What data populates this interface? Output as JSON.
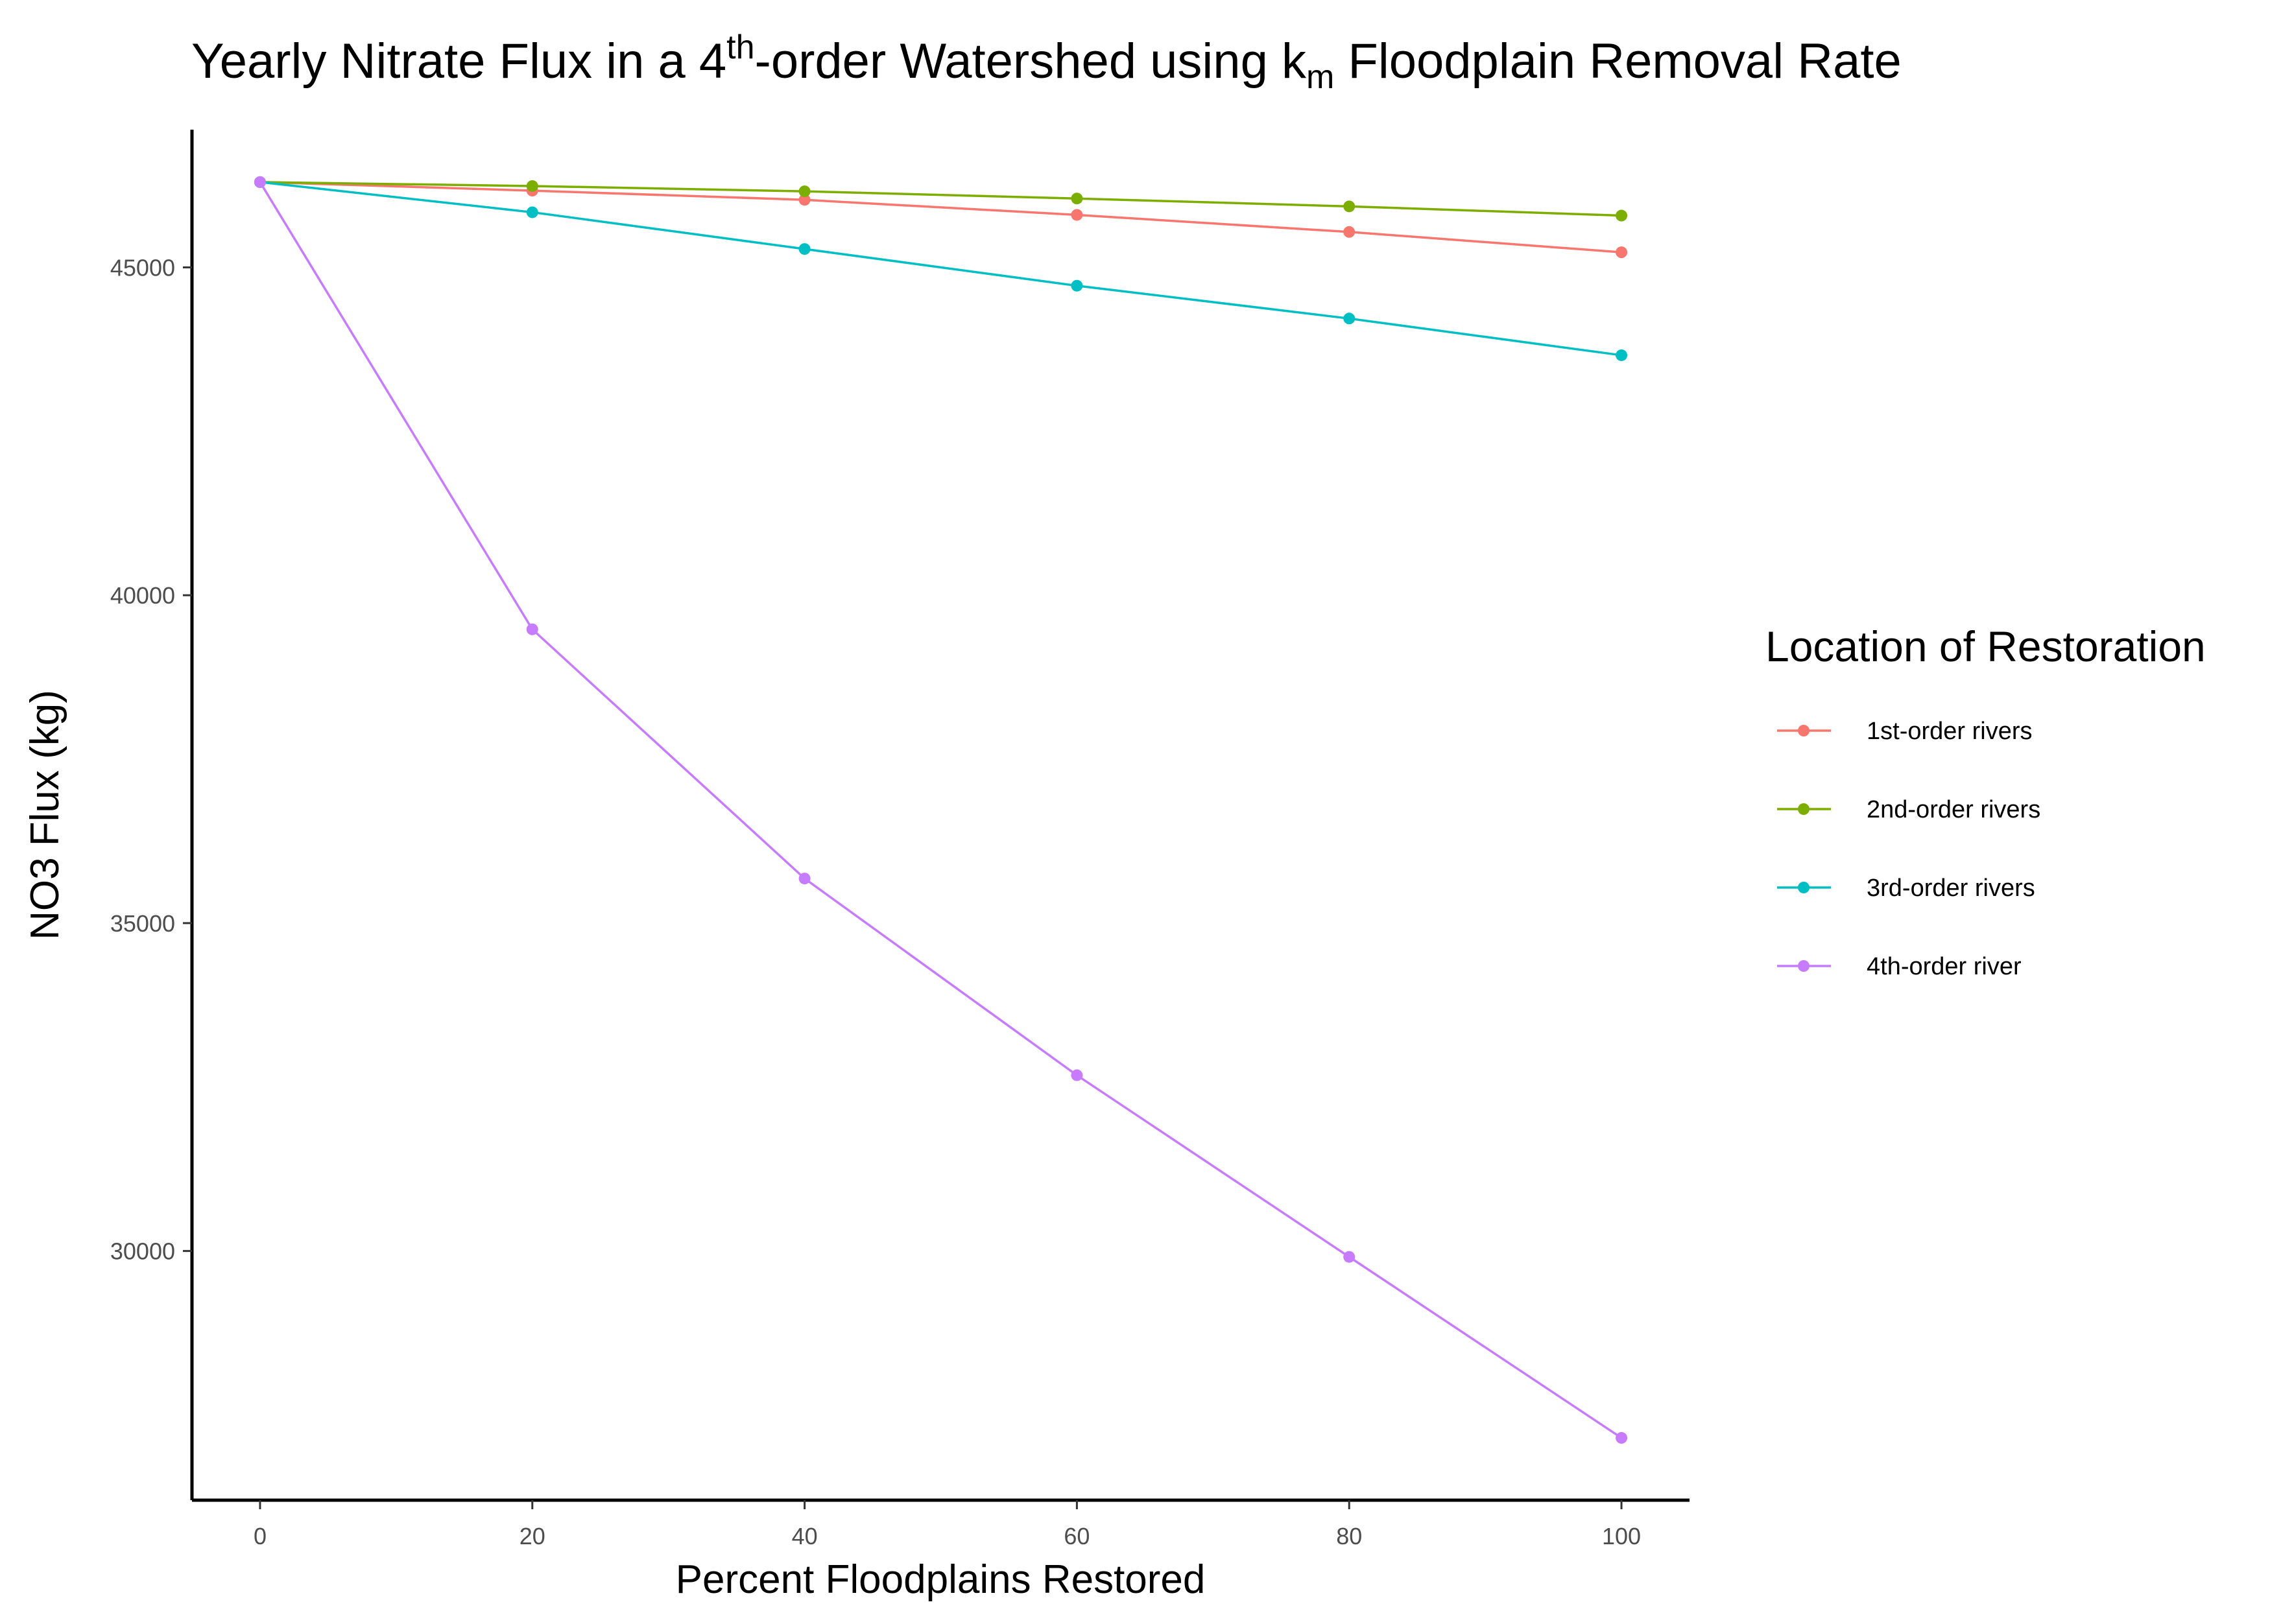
{
  "chart_data": {
    "type": "line",
    "title": {
      "pre": "Yearly Nitrate Flux in a 4",
      "sup": "th",
      "mid": "-order Watershed using k",
      "sub": "m",
      "post": " Floodplain Removal Rate"
    },
    "xlabel": "Percent Floodplains Restored",
    "ylabel": "NO3 Flux (kg)",
    "x": [
      0,
      20,
      40,
      60,
      80,
      100
    ],
    "xlim": [
      -5,
      105
    ],
    "ylim": [
      26200,
      47100
    ],
    "xticks": [
      "0",
      "20",
      "40",
      "60",
      "80",
      "100"
    ],
    "yticks": [
      "30000",
      "35000",
      "40000",
      "45000"
    ],
    "grid": false,
    "legend": {
      "title": "Location of Restoration",
      "placement": "right"
    },
    "series": [
      {
        "name": "1st-order rivers",
        "color": "#F8766D",
        "values": [
          46300,
          46170,
          46030,
          45800,
          45540,
          45230
        ]
      },
      {
        "name": "2nd-order rivers",
        "color": "#7CAE00",
        "values": [
          46300,
          46240,
          46160,
          46050,
          45930,
          45790
        ]
      },
      {
        "name": "3rd-order rivers",
        "color": "#00BFC4",
        "values": [
          46300,
          45840,
          45280,
          44720,
          44220,
          43660
        ]
      },
      {
        "name": "4th-order river",
        "color": "#C77CFF",
        "values": [
          46300,
          39480,
          35680,
          32680,
          29910,
          27150
        ]
      }
    ]
  }
}
